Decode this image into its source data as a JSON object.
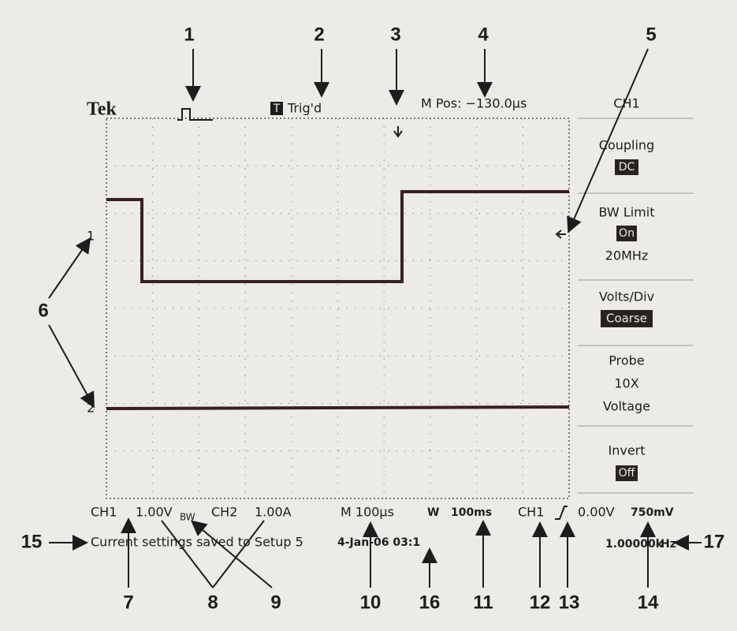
{
  "callouts": [
    "1",
    "2",
    "3",
    "4",
    "5",
    "6",
    "7",
    "8",
    "9",
    "10",
    "11",
    "12",
    "13",
    "14",
    "15",
    "16",
    "17"
  ],
  "header": {
    "brand": "Tek",
    "trigger_icon": "T",
    "trigger_status": "Trig'd",
    "position": "M Pos: −130.0µs"
  },
  "menu": {
    "title": "CH1",
    "items": [
      {
        "label": "Coupling",
        "value": "DC"
      },
      {
        "label": "BW Limit",
        "value": "On",
        "note": "20MHz"
      },
      {
        "label": "Volts/Div",
        "value": "Coarse"
      },
      {
        "label": "Probe",
        "lines": [
          "10X",
          "Voltage"
        ]
      },
      {
        "label": "Invert",
        "value": "Off"
      }
    ]
  },
  "channel_markers": [
    "1",
    "2"
  ],
  "status": {
    "ch1": "CH1",
    "ch1_scale": "1.00V",
    "bw": "BW",
    "ch2": "CH2",
    "ch2_scale": "1.00A",
    "timebase": "M 100µs",
    "window_label": "W",
    "window": "100ms",
    "trigger_source": "CH1",
    "trigger_level": "0.00V",
    "level2": "750mV",
    "frequency": "1.00000k",
    "frequency_unit": "Hz",
    "message": "Current settings saved to Setup 5",
    "datetime": "4-Jan-06 03:1"
  }
}
